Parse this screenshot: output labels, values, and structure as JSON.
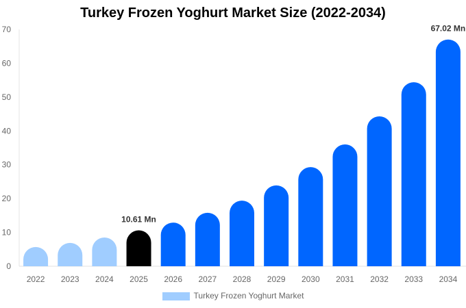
{
  "chart_data": {
    "type": "bar",
    "title": "Turkey Frozen Yoghurt Market Size (2022-2034)",
    "categories": [
      "2022",
      "2023",
      "2024",
      "2025",
      "2026",
      "2027",
      "2028",
      "2029",
      "2030",
      "2031",
      "2032",
      "2033",
      "2034"
    ],
    "series": [
      {
        "name": "Turkey Frozen Yoghurt Market",
        "values": [
          5.7,
          6.9,
          8.5,
          10.61,
          12.9,
          15.8,
          19.4,
          23.9,
          29.3,
          36.0,
          44.3,
          54.4,
          67.02
        ]
      }
    ],
    "data_labels": {
      "2025": "10.61 Mn",
      "2034": "67.02 Mn"
    },
    "ylim": [
      0,
      70
    ],
    "yticks": [
      0,
      10,
      20,
      30,
      40,
      50,
      60,
      70
    ],
    "grid": false,
    "legend_position": "bottom",
    "colors": {
      "historical": "#a0cdff",
      "current": "#000000",
      "forecast": "#0066ff"
    }
  }
}
